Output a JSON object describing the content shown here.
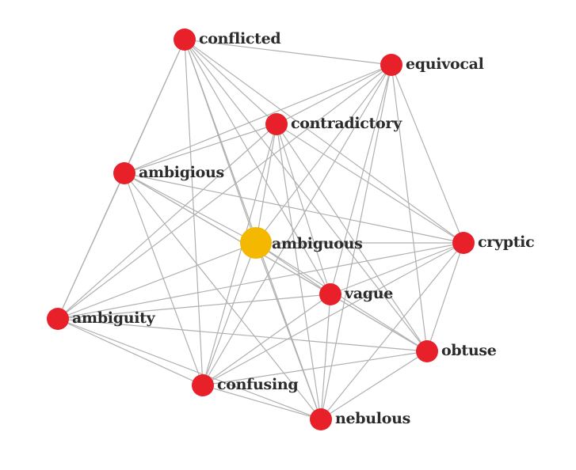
{
  "graph": {
    "center": "ambiguous",
    "colors": {
      "node": "#e8202a",
      "center": "#f5b800",
      "edge": "#b0b0b0",
      "label": "#2b2b2b"
    },
    "nodes": [
      {
        "id": "conflicted",
        "label": "conflicted"
      },
      {
        "id": "equivocal",
        "label": "equivocal"
      },
      {
        "id": "contradictory",
        "label": "contradictory"
      },
      {
        "id": "ambigious",
        "label": "ambigious"
      },
      {
        "id": "ambiguous",
        "label": "ambiguous"
      },
      {
        "id": "cryptic",
        "label": "cryptic"
      },
      {
        "id": "vague",
        "label": "vague"
      },
      {
        "id": "ambiguity",
        "label": "ambiguity"
      },
      {
        "id": "obtuse",
        "label": "obtuse"
      },
      {
        "id": "confusing",
        "label": "confusing"
      },
      {
        "id": "nebulous",
        "label": "nebulous"
      }
    ],
    "edges": [
      [
        "conflicted",
        "equivocal"
      ],
      [
        "conflicted",
        "contradictory"
      ],
      [
        "conflicted",
        "ambigious"
      ],
      [
        "conflicted",
        "ambiguous"
      ],
      [
        "conflicted",
        "cryptic"
      ],
      [
        "conflicted",
        "vague"
      ],
      [
        "conflicted",
        "obtuse"
      ],
      [
        "conflicted",
        "confusing"
      ],
      [
        "conflicted",
        "nebulous"
      ],
      [
        "conflicted",
        "ambiguity"
      ],
      [
        "equivocal",
        "contradictory"
      ],
      [
        "equivocal",
        "ambigious"
      ],
      [
        "equivocal",
        "ambiguous"
      ],
      [
        "equivocal",
        "cryptic"
      ],
      [
        "equivocal",
        "vague"
      ],
      [
        "equivocal",
        "ambiguity"
      ],
      [
        "equivocal",
        "obtuse"
      ],
      [
        "equivocal",
        "confusing"
      ],
      [
        "equivocal",
        "nebulous"
      ],
      [
        "contradictory",
        "ambigious"
      ],
      [
        "contradictory",
        "ambiguous"
      ],
      [
        "contradictory",
        "cryptic"
      ],
      [
        "contradictory",
        "vague"
      ],
      [
        "contradictory",
        "ambiguity"
      ],
      [
        "contradictory",
        "obtuse"
      ],
      [
        "contradictory",
        "confusing"
      ],
      [
        "contradictory",
        "nebulous"
      ],
      [
        "ambigious",
        "ambiguous"
      ],
      [
        "ambigious",
        "cryptic"
      ],
      [
        "ambigious",
        "vague"
      ],
      [
        "ambigious",
        "ambiguity"
      ],
      [
        "ambigious",
        "obtuse"
      ],
      [
        "ambigious",
        "confusing"
      ],
      [
        "ambigious",
        "nebulous"
      ],
      [
        "ambiguous",
        "cryptic"
      ],
      [
        "ambiguous",
        "vague"
      ],
      [
        "ambiguous",
        "ambiguity"
      ],
      [
        "ambiguous",
        "obtuse"
      ],
      [
        "ambiguous",
        "confusing"
      ],
      [
        "ambiguous",
        "nebulous"
      ],
      [
        "cryptic",
        "vague"
      ],
      [
        "cryptic",
        "ambiguity"
      ],
      [
        "cryptic",
        "obtuse"
      ],
      [
        "cryptic",
        "confusing"
      ],
      [
        "cryptic",
        "nebulous"
      ],
      [
        "vague",
        "ambiguity"
      ],
      [
        "vague",
        "obtuse"
      ],
      [
        "vague",
        "confusing"
      ],
      [
        "vague",
        "nebulous"
      ],
      [
        "ambiguity",
        "obtuse"
      ],
      [
        "ambiguity",
        "confusing"
      ],
      [
        "ambiguity",
        "nebulous"
      ],
      [
        "obtuse",
        "confusing"
      ],
      [
        "obtuse",
        "nebulous"
      ],
      [
        "confusing",
        "nebulous"
      ]
    ]
  }
}
